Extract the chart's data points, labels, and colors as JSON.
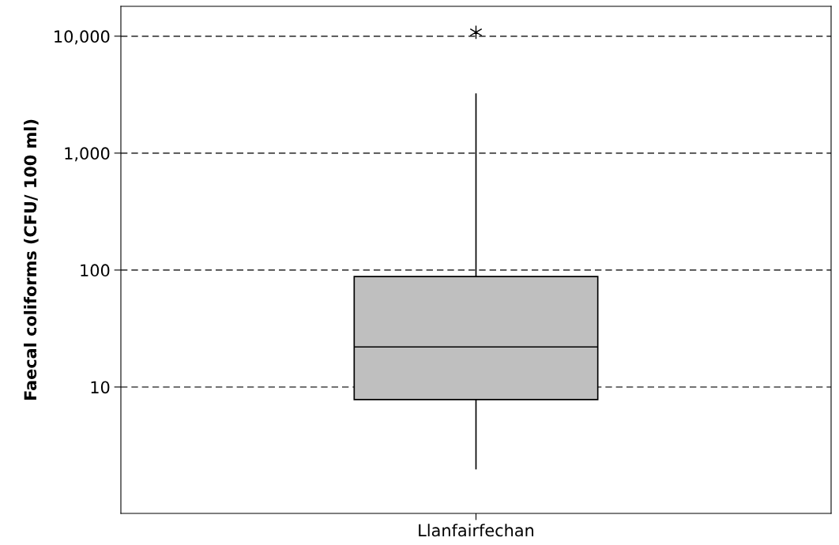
{
  "chart_data": {
    "type": "box",
    "ylabel": "Faecal coliforms (CFU/ 100 ml)",
    "categories": [
      "Llanfairfechan"
    ],
    "boxes": [
      {
        "low": 2,
        "q1": 7.8,
        "median": 22,
        "q3": 88,
        "high": 3200,
        "outliers": [
          10800
        ]
      }
    ],
    "color": "#bfbfbf",
    "log": true,
    "ylim": [
      0.83,
      18000
    ],
    "yticks": [
      {
        "value": 10,
        "label": "10"
      },
      {
        "value": 100,
        "label": "100"
      },
      {
        "value": 1000,
        "label": "1,000"
      },
      {
        "value": 10000,
        "label": "10,000"
      }
    ],
    "grid": "y"
  }
}
